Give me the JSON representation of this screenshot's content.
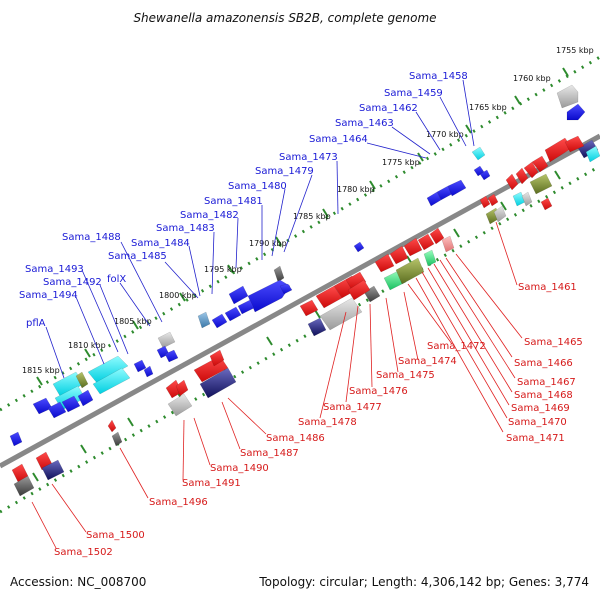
{
  "title": "Shewanella amazonensis SB2B, complete genome",
  "footer": {
    "accession": "Accession: NC_008700",
    "topology": "Topology: circular; Length: 4,306,142 bp; Genes: 3,774"
  },
  "colors": {
    "forward_leader": "#2222cc",
    "reverse_leader": "#e02222",
    "backbone": "#888888",
    "tick_dots": "#2e8b2e"
  },
  "scale_labels": [
    "1755 kbp",
    "1760 kbp",
    "1765 kbp",
    "1770 kbp",
    "1775 kbp",
    "1780 kbp",
    "1785 kbp",
    "1790 kbp",
    "1795 kbp",
    "1800 kbp",
    "1805 kbp",
    "1810 kbp",
    "1815 kbp"
  ],
  "forward_genes": [
    "Sama_1458",
    "Sama_1459",
    "Sama_1462",
    "Sama_1463",
    "Sama_1464",
    "Sama_1473",
    "Sama_1479",
    "Sama_1480",
    "Sama_1481",
    "Sama_1482",
    "Sama_1483",
    "Sama_1484",
    "Sama_1485",
    "Sama_1488",
    "folX",
    "Sama_1493",
    "Sama_1492",
    "Sama_1494",
    "pflA"
  ],
  "reverse_genes": [
    "Sama_1461",
    "Sama_1465",
    "Sama_1466",
    "Sama_1467",
    "Sama_1468",
    "Sama_1469",
    "Sama_1470",
    "Sama_1471",
    "Sama_1472",
    "Sama_1474",
    "Sama_1475",
    "Sama_1476",
    "Sama_1477",
    "Sama_1478",
    "Sama_1486",
    "Sama_1487",
    "Sama_1490",
    "Sama_1491",
    "Sama_1496",
    "Sama_1500",
    "Sama_1502"
  ]
}
